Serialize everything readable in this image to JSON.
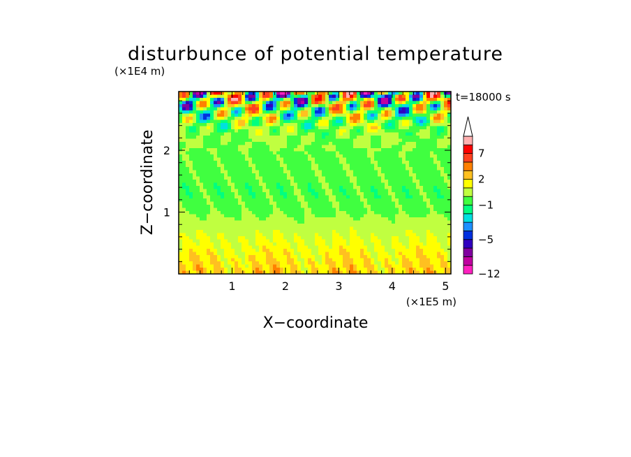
{
  "chart_data": {
    "type": "heatmap",
    "title": "disturbunce of potential temperature",
    "xlabel": "X−coordinate",
    "ylabel": "Z−coordinate",
    "x_unit": "(×1E5 m)",
    "y_unit": "(×1E4 m)",
    "time_label": "t=18000 s",
    "x_ticks": [
      {
        "value": 1,
        "label": "1"
      },
      {
        "value": 2,
        "label": "2"
      },
      {
        "value": 3,
        "label": "3"
      },
      {
        "value": 4,
        "label": "4"
      },
      {
        "value": 5,
        "label": "5"
      }
    ],
    "y_ticks": [
      {
        "value": 1,
        "label": "1"
      },
      {
        "value": 2,
        "label": "2"
      }
    ],
    "xlim": [
      0,
      5.1
    ],
    "ylim": [
      0,
      2.95
    ],
    "colorbar": {
      "levels": [
        -12,
        -10,
        -8,
        -6,
        -5,
        -4,
        -3,
        -2,
        -1,
        0,
        1,
        2,
        3,
        5,
        7,
        9,
        11
      ],
      "colors": [
        "#ff20c0",
        "#c000a0",
        "#8000a0",
        "#3000c0",
        "#0030e0",
        "#1e90ff",
        "#00e0e0",
        "#00ff80",
        "#40ff40",
        "#c0ff40",
        "#ffff00",
        "#ffc020",
        "#ff8000",
        "#ff4020",
        "#ff0000",
        "#ffb0b0"
      ],
      "labels": [
        {
          "value": -12,
          "label": "−12"
        },
        {
          "value": -5,
          "label": "−5"
        },
        {
          "value": -1,
          "label": "−1"
        },
        {
          "value": 2,
          "label": "2"
        },
        {
          "value": 7,
          "label": "7"
        }
      ],
      "extend": "max"
    }
  }
}
